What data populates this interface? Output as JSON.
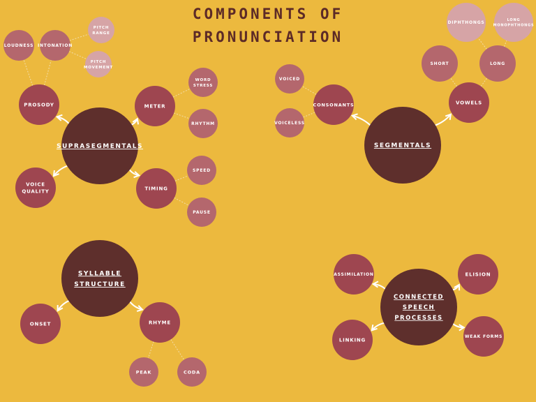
{
  "title": {
    "line1": "COMPONENTS OF",
    "line2": "PRONUNCIATION"
  },
  "colors": {
    "background": "#ecb93e",
    "hub": "#5e2f2c",
    "primary": "#9e4650",
    "secondary": "#b4676d",
    "tertiary": "#d6a4a6",
    "text": "#ffffff",
    "title": "#5c2a27"
  },
  "nodes": {
    "suprasegmentals": "SUPRASEGMENTALS",
    "prosody": "PROSODY",
    "loudness": "LOUDNESS",
    "intonation": "INTONATION",
    "pitch_range": [
      "PITCH",
      "RANGE"
    ],
    "pitch_movement": [
      "PITCH",
      "MOVEMENT"
    ],
    "meter": "METER",
    "word_stress": [
      "WORD",
      "STRESS"
    ],
    "rhythm": "RHYTHM",
    "timing": "TIMING",
    "speed": "SPEED",
    "pause": "PAUSE",
    "voice_quality": [
      "VOICE",
      "QUALITY"
    ],
    "segmentals": "SEGMENTALS",
    "consonants": "CONSONANTS",
    "voiced": "VOICED",
    "voiceless": "VOICELESS",
    "vowels": "VOWELS",
    "short": "SHORT",
    "long": "LONG",
    "diphthongs": "DIPHTHONGS",
    "long_monophthongs": [
      "LONG",
      "MONOPHTHONGS"
    ],
    "syllable_structure": [
      "SYLLABLE",
      "STRUCTURE"
    ],
    "onset": "ONSET",
    "rhyme": "RHYME",
    "peak": "PEAK",
    "coda": "CODA",
    "connected_speech": [
      "CONNECTED",
      "SPEECH",
      "PROCESSES"
    ],
    "assimilation": "ASSIMILATION",
    "elision": "ELISION",
    "linking": "LINKING",
    "weak_forms": "WEAK FORMS"
  }
}
